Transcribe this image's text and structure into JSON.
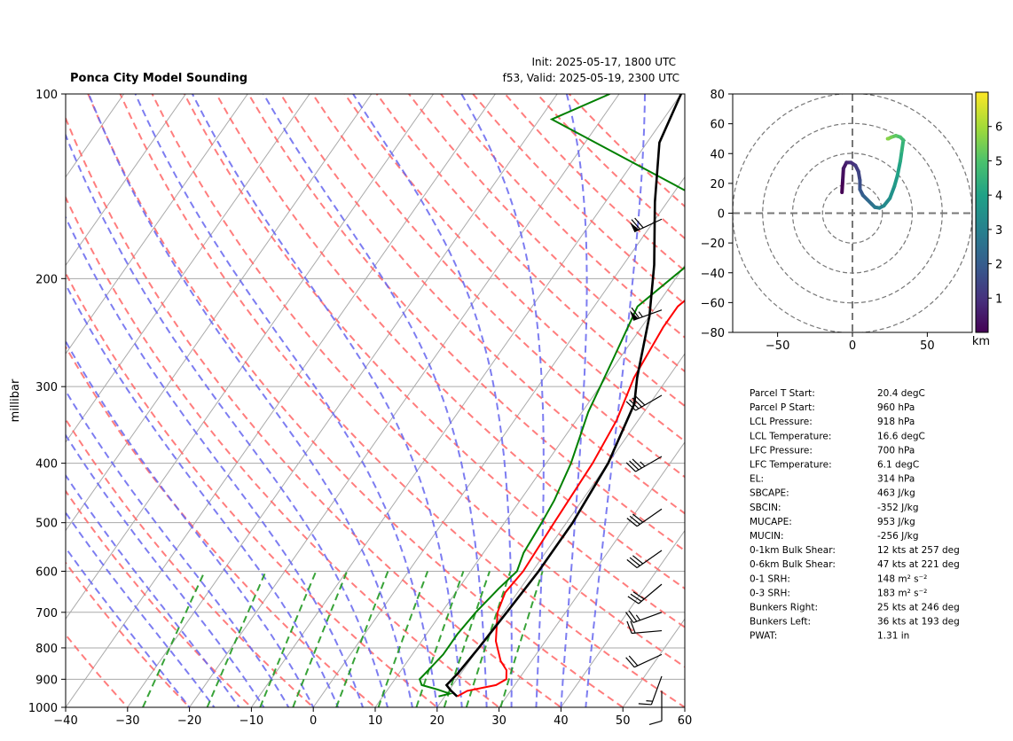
{
  "header": {
    "title": "Ponca City Model Sounding",
    "init_line": "Init: 2025-05-17, 1800 UTC",
    "valid_line": "f53, Valid: 2025-05-19, 2300 UTC"
  },
  "chart_data": [
    {
      "type": "line",
      "subtype": "skew-t",
      "ylabel": "millibar",
      "xlim": [
        -40,
        60
      ],
      "ylim": [
        1000,
        100
      ],
      "y_scale": "log",
      "x_ticks": [
        "−40",
        "−30",
        "−20",
        "−10",
        "0",
        "10",
        "20",
        "30",
        "40",
        "50",
        "60"
      ],
      "y_ticks": [
        "100",
        "200",
        "300",
        "400",
        "500",
        "600",
        "700",
        "800",
        "900",
        "1000"
      ],
      "colors": {
        "temperature": "#ff0000",
        "dewpoint": "#008000",
        "parcel": "#000000",
        "dry_adiabat": "#ff6666",
        "moist_adiabat": "#6666ee",
        "mixing_ratio": "#229922",
        "isotherm": "#aaaaaa"
      },
      "series": [
        {
          "role": "temperature",
          "color": "#ff0000",
          "points": [
            [
              22,
              960
            ],
            [
              23,
              940
            ],
            [
              27,
              920
            ],
            [
              28,
              900
            ],
            [
              27,
              870
            ],
            [
              25,
              840
            ],
            [
              22,
              780
            ],
            [
              19,
              700
            ],
            [
              18,
              650
            ],
            [
              18.5,
              600
            ],
            [
              18,
              500
            ],
            [
              17.5,
              400
            ],
            [
              16.5,
              340
            ],
            [
              14.5,
              290
            ],
            [
              13.5,
              240
            ],
            [
              13.5,
              222
            ],
            [
              17,
              190
            ],
            [
              24,
              150
            ],
            [
              38,
              114
            ],
            [
              40,
              100
            ]
          ]
        },
        {
          "role": "dewpoint",
          "color": "#008000",
          "points": [
            [
              19,
              960
            ],
            [
              20.5,
              950
            ],
            [
              18,
              935
            ],
            [
              15,
              920
            ],
            [
              14,
              900
            ],
            [
              14.5,
              860
            ],
            [
              15,
              820
            ],
            [
              15,
              760
            ],
            [
              15.5,
              700
            ],
            [
              16.5,
              640
            ],
            [
              17.5,
              600
            ],
            [
              16.5,
              560
            ],
            [
              16,
              500
            ],
            [
              15.5,
              460
            ],
            [
              14,
              400
            ],
            [
              11,
              330
            ],
            [
              9,
              270
            ],
            [
              7,
              222
            ],
            [
              11,
              185
            ],
            [
              13.5,
              160
            ],
            [
              -28,
              110
            ],
            [
              -21.5,
              100
            ]
          ]
        },
        {
          "role": "parcel",
          "color": "#000000",
          "points": [
            [
              22,
              960
            ],
            [
              20.4,
              940
            ],
            [
              19,
              920
            ],
            [
              19.5,
              880
            ],
            [
              20,
              800
            ],
            [
              20.5,
              700
            ],
            [
              21,
              600
            ],
            [
              21,
              500
            ],
            [
              20,
              400
            ],
            [
              17.5,
              320
            ],
            [
              15,
              290
            ],
            [
              10,
              230
            ],
            [
              5,
              190
            ],
            [
              -2,
              150
            ],
            [
              -8,
              120
            ],
            [
              -10,
              100
            ]
          ]
        }
      ],
      "wind_barbs": [
        {
          "pressure": 160,
          "speed_kt": 70,
          "dir_deg": 245
        },
        {
          "pressure": 225,
          "speed_kt": 65,
          "dir_deg": 250
        },
        {
          "pressure": 310,
          "speed_kt": 40,
          "dir_deg": 240
        },
        {
          "pressure": 390,
          "speed_kt": 35,
          "dir_deg": 240
        },
        {
          "pressure": 475,
          "speed_kt": 30,
          "dir_deg": 235
        },
        {
          "pressure": 555,
          "speed_kt": 30,
          "dir_deg": 235
        },
        {
          "pressure": 630,
          "speed_kt": 30,
          "dir_deg": 230
        },
        {
          "pressure": 700,
          "speed_kt": 25,
          "dir_deg": 250
        },
        {
          "pressure": 750,
          "speed_kt": 20,
          "dir_deg": 265
        },
        {
          "pressure": 820,
          "speed_kt": 20,
          "dir_deg": 245
        },
        {
          "pressure": 890,
          "speed_kt": 15,
          "dir_deg": 200
        },
        {
          "pressure": 940,
          "speed_kt": 10,
          "dir_deg": 180
        }
      ]
    },
    {
      "type": "line",
      "subtype": "hodograph",
      "xlim": [
        -80,
        80
      ],
      "ylim": [
        -80,
        80
      ],
      "x_ticks": [
        "−50",
        "0",
        "50"
      ],
      "y_ticks": [
        "80",
        "60",
        "40",
        "20",
        "0",
        "−20",
        "−40",
        "−60",
        "−80"
      ],
      "colorbar_label": "km",
      "colorbar_ticks": [
        "6",
        "5",
        "4",
        "3",
        "2",
        "1"
      ],
      "colorbar_range": [
        0,
        7
      ],
      "points": [
        [
          -7,
          14
        ],
        [
          -6.5,
          22
        ],
        [
          -6,
          30
        ],
        [
          -4,
          34
        ],
        [
          -1,
          34
        ],
        [
          2,
          32
        ],
        [
          4,
          28
        ],
        [
          5,
          22
        ],
        [
          5,
          16
        ],
        [
          7,
          12
        ],
        [
          10,
          9
        ],
        [
          13,
          6
        ],
        [
          15,
          4
        ],
        [
          18,
          3.5
        ],
        [
          21,
          5
        ],
        [
          25,
          10
        ],
        [
          28,
          18
        ],
        [
          30,
          25
        ],
        [
          32,
          35
        ],
        [
          33,
          42
        ],
        [
          34,
          49
        ],
        [
          32,
          51
        ],
        [
          29,
          52
        ],
        [
          26,
          51
        ],
        [
          24,
          50
        ],
        [
          23.5,
          50
        ]
      ]
    }
  ],
  "info_panel": {
    "rows": [
      {
        "label": "Parcel T Start:",
        "value": "20.4 degC"
      },
      {
        "label": "Parcel P Start:",
        "value": "960 hPa"
      },
      {
        "label": "LCL Pressure:",
        "value": "918 hPa"
      },
      {
        "label": "LCL Temperature:",
        "value": "16.6 degC"
      },
      {
        "label": "LFC Pressure:",
        "value": "700 hPa"
      },
      {
        "label": "LFC Temperature:",
        "value": "6.1 degC"
      },
      {
        "label": "EL:",
        "value": "314 hPa"
      },
      {
        "label": "SBCAPE:",
        "value": "463 J/kg"
      },
      {
        "label": "SBCIN:",
        "value": "-352 J/kg"
      },
      {
        "label": "MUCAPE:",
        "value": "953 J/kg"
      },
      {
        "label": "MUCIN:",
        "value": "-256 J/kg"
      },
      {
        "label": "0-1km Bulk Shear:",
        "value": "12 kts at 257 deg"
      },
      {
        "label": "0-6km Bulk Shear:",
        "value": "47 kts at 221 deg"
      },
      {
        "label": "0-1 SRH:",
        "value": "148 m² s⁻²"
      },
      {
        "label": "0-3 SRH:",
        "value": "183 m² s⁻²"
      },
      {
        "label": "Bunkers Right:",
        "value": "25 kts at 246 deg"
      },
      {
        "label": "Bunkers Left:",
        "value": "36 kts at 193 deg"
      },
      {
        "label": "PWAT:",
        "value": "1.31 in"
      }
    ]
  }
}
